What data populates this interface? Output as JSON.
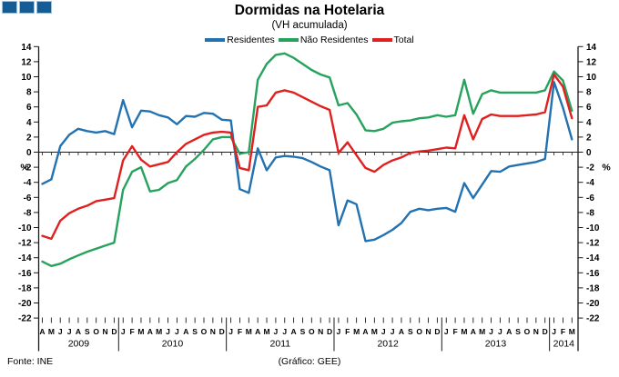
{
  "logo": {
    "square_count": 3,
    "fill": "#155c97",
    "border": "#9cc2dc"
  },
  "header": {
    "title": "Dormidas na Hotelaria",
    "subtitle": "(VH acumulada)"
  },
  "footer": {
    "source": "Fonte: INE",
    "credit": "(Gráfico: GEE)"
  },
  "chart_data": {
    "type": "line",
    "title": "Dormidas na Hotelaria",
    "subtitle": "(VH acumulada)",
    "ylabel": "%",
    "ylim": [
      -22,
      14
    ],
    "ytick_step": 2,
    "grid": false,
    "legend_position": "top",
    "axis_color": "#1a1a1a",
    "x_months": [
      "A",
      "M",
      "J",
      "J",
      "A",
      "S",
      "O",
      "N",
      "D",
      "J",
      "F",
      "M",
      "A",
      "M",
      "J",
      "J",
      "A",
      "S",
      "O",
      "N",
      "D",
      "J",
      "F",
      "M",
      "A",
      "M",
      "J",
      "J",
      "A",
      "S",
      "O",
      "N",
      "D",
      "J",
      "F",
      "M",
      "A",
      "M",
      "J",
      "J",
      "A",
      "S",
      "O",
      "N",
      "D",
      "J",
      "F",
      "M",
      "A",
      "M",
      "J",
      "J",
      "A",
      "S",
      "O",
      "N",
      "D",
      "J",
      "F",
      "M"
    ],
    "years": [
      {
        "label": "2009",
        "months": 9
      },
      {
        "label": "2010",
        "months": 12
      },
      {
        "label": "2011",
        "months": 12
      },
      {
        "label": "2012",
        "months": 12
      },
      {
        "label": "2013",
        "months": 12
      },
      {
        "label": "2014",
        "months": 3
      }
    ],
    "series": [
      {
        "name": "Residentes",
        "color": "#2272b2",
        "values": [
          -4.2,
          -3.6,
          0.8,
          2.3,
          3.1,
          2.8,
          2.6,
          2.8,
          2.4,
          6.9,
          3.3,
          5.5,
          5.4,
          4.9,
          4.6,
          3.7,
          4.8,
          4.7,
          5.2,
          5.1,
          4.3,
          4.2,
          -4.9,
          -5.4,
          0.5,
          -2.4,
          -0.7,
          -0.5,
          -0.6,
          -0.8,
          -1.3,
          -1.9,
          -2.4,
          -9.7,
          -6.4,
          -6.9,
          -11.8,
          -11.6,
          -11.0,
          -10.3,
          -9.4,
          -7.9,
          -7.5,
          -7.7,
          -7.5,
          -7.4,
          -7.9,
          -4.1,
          -6.1,
          -4.3,
          -2.5,
          -2.6,
          -1.9,
          -1.7,
          -1.5,
          -1.3,
          -0.9,
          9.3,
          5.9,
          1.7
        ]
      },
      {
        "name": "Não Residentes",
        "color": "#27a25d",
        "values": [
          -14.5,
          -15.1,
          -14.8,
          -14.2,
          -13.7,
          -13.2,
          -12.8,
          -12.4,
          -12.0,
          -5.0,
          -2.6,
          -2.0,
          -5.2,
          -5.0,
          -4.1,
          -3.7,
          -1.9,
          -0.9,
          0.3,
          1.7,
          2.0,
          2.0,
          -0.2,
          0.0,
          9.6,
          11.7,
          12.9,
          13.1,
          12.5,
          11.7,
          10.9,
          10.3,
          9.9,
          6.2,
          6.5,
          5.0,
          2.9,
          2.8,
          3.1,
          3.9,
          4.1,
          4.2,
          4.5,
          4.6,
          4.9,
          4.7,
          4.9,
          9.6,
          5.1,
          7.7,
          8.2,
          7.9,
          7.9,
          7.9,
          7.9,
          7.9,
          8.2,
          10.7,
          9.5,
          5.5
        ]
      },
      {
        "name": "Total",
        "color": "#e0201f",
        "values": [
          -11.1,
          -11.5,
          -9.1,
          -8.1,
          -7.5,
          -7.1,
          -6.5,
          -6.3,
          -6.1,
          -1.1,
          0.8,
          -1.0,
          -1.9,
          -1.6,
          -1.3,
          0.0,
          1.1,
          1.7,
          2.3,
          2.6,
          2.7,
          2.6,
          -2.1,
          -2.4,
          6.0,
          6.2,
          7.9,
          8.2,
          7.9,
          7.3,
          6.7,
          6.1,
          5.6,
          -0.1,
          1.3,
          -0.4,
          -2.1,
          -2.6,
          -1.7,
          -1.1,
          -0.7,
          -0.1,
          0.1,
          0.2,
          0.4,
          0.6,
          0.5,
          4.9,
          1.7,
          4.4,
          5.0,
          4.8,
          4.8,
          4.8,
          4.9,
          5.0,
          5.3,
          10.3,
          8.7,
          4.5
        ]
      }
    ]
  }
}
